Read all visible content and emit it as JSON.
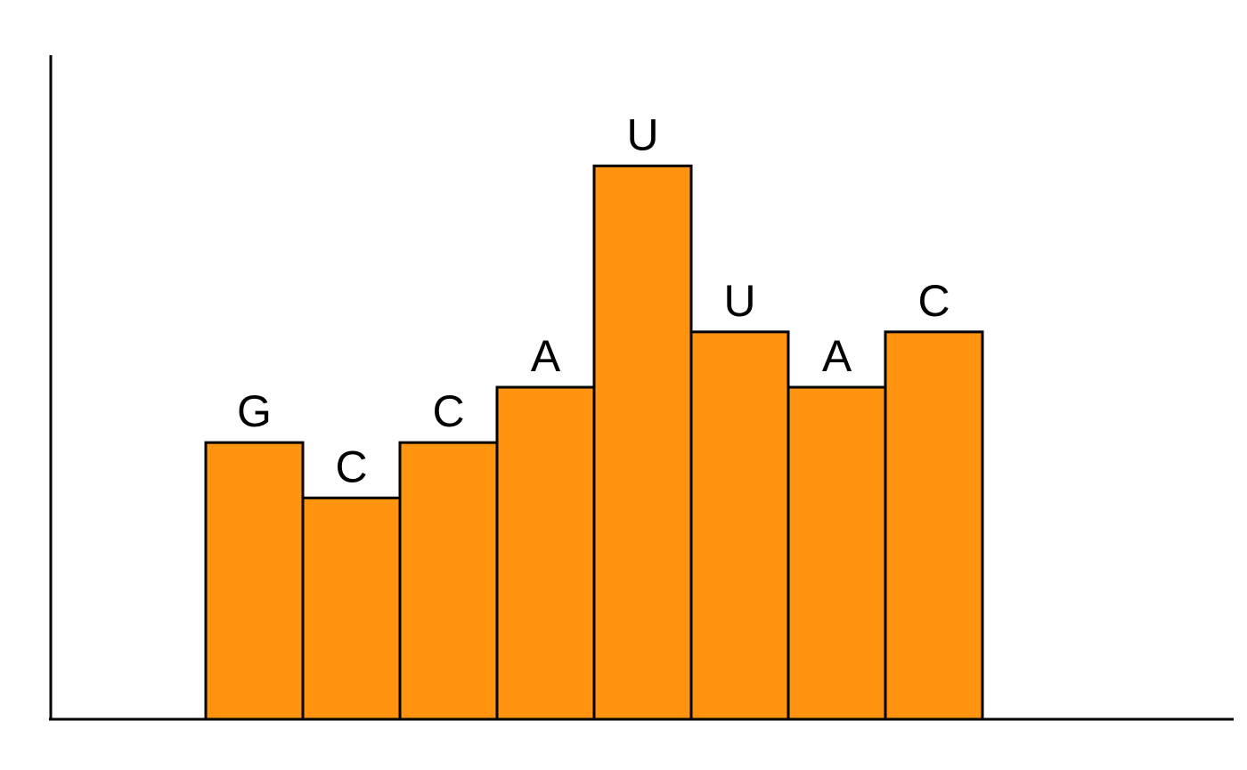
{
  "chart_data": {
    "type": "bar",
    "categories": [
      "G",
      "C",
      "C",
      "A",
      "U",
      "U",
      "A",
      "C"
    ],
    "values": [
      5,
      4,
      5,
      6,
      10,
      7,
      6,
      7
    ],
    "ylim": [
      0,
      12
    ],
    "title": "",
    "xlabel": "",
    "ylabel": "",
    "grid": false,
    "legend": "none",
    "bar_color": "#FF9410",
    "bar_stroke": "#000000",
    "axis_color": "#000000"
  }
}
